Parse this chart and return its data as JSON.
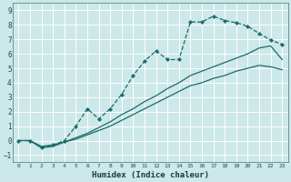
{
  "xlabel": "Humidex (Indice chaleur)",
  "bg_color": "#cce8e8",
  "grid_color": "#ffffff",
  "line_color": "#1a6b6b",
  "xlim": [
    -0.5,
    23.5
  ],
  "ylim": [
    -1.5,
    9.5
  ],
  "xticks": [
    0,
    1,
    2,
    3,
    4,
    5,
    6,
    7,
    8,
    9,
    10,
    11,
    12,
    13,
    14,
    15,
    16,
    17,
    18,
    19,
    20,
    21,
    22,
    23
  ],
  "yticks": [
    -1,
    0,
    1,
    2,
    3,
    4,
    5,
    6,
    7,
    8,
    9
  ],
  "line1_x": [
    0,
    1,
    2,
    3,
    4,
    5,
    6,
    7,
    8,
    9,
    10,
    11,
    12,
    13,
    14,
    15,
    16,
    17,
    18,
    19,
    20,
    21,
    22,
    23
  ],
  "line1_y": [
    0,
    0,
    -0.5,
    -0.3,
    0.0,
    1.0,
    2.2,
    1.5,
    2.2,
    3.2,
    4.5,
    5.5,
    6.2,
    5.6,
    5.6,
    8.2,
    8.2,
    8.6,
    8.3,
    8.15,
    7.9,
    7.4,
    6.95,
    6.65
  ],
  "line1_markers_x": [
    0,
    1,
    2,
    3,
    4,
    5,
    6,
    7,
    8,
    9,
    10,
    11,
    12,
    13,
    14,
    15,
    16,
    17,
    18,
    19,
    20,
    21,
    22,
    23
  ],
  "line2_x": [
    0,
    1,
    2,
    3,
    4,
    5,
    6,
    7,
    8,
    9,
    10,
    11,
    12,
    13,
    14,
    15,
    16,
    17,
    18,
    19,
    20,
    21,
    22,
    23
  ],
  "line2_y": [
    0,
    0,
    -0.5,
    -0.4,
    -0.1,
    0.2,
    0.5,
    0.9,
    1.3,
    1.8,
    2.2,
    2.7,
    3.1,
    3.6,
    4.0,
    4.5,
    4.8,
    5.1,
    5.4,
    5.7,
    6.0,
    6.4,
    6.55,
    5.6
  ],
  "line3_x": [
    0,
    1,
    2,
    3,
    4,
    5,
    6,
    7,
    8,
    9,
    10,
    11,
    12,
    13,
    14,
    15,
    16,
    17,
    18,
    19,
    20,
    21,
    22,
    23
  ],
  "line3_y": [
    0,
    0,
    -0.4,
    -0.3,
    -0.1,
    0.1,
    0.4,
    0.7,
    1.0,
    1.4,
    1.8,
    2.2,
    2.6,
    3.0,
    3.4,
    3.8,
    4.0,
    4.3,
    4.5,
    4.8,
    5.0,
    5.2,
    5.1,
    4.9
  ]
}
